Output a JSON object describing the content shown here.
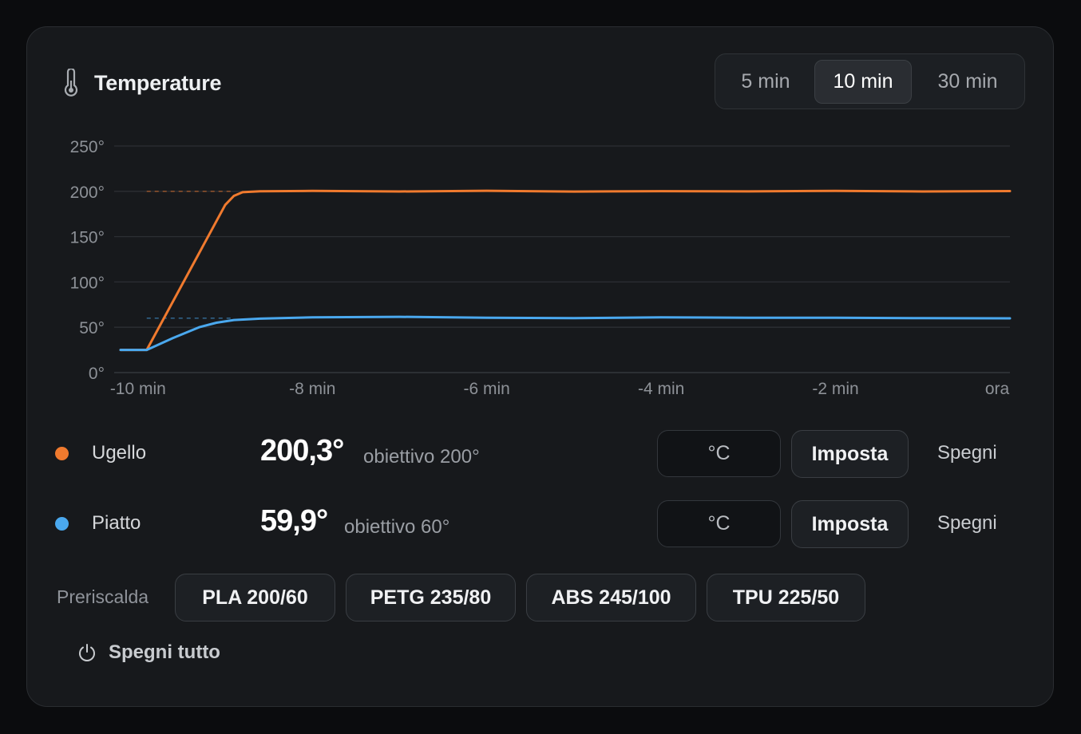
{
  "header": {
    "title": "Temperature",
    "icon": "thermometer-icon",
    "ranges": [
      "5 min",
      "10 min",
      "30 min"
    ],
    "active_range": "10 min"
  },
  "chart_data": {
    "type": "line",
    "x_ticks": [
      "-10 min",
      "-8 min",
      "-6 min",
      "-4 min",
      "-2 min",
      "ora"
    ],
    "y_ticks": [
      "250°",
      "200°",
      "150°",
      "100°",
      "50°",
      "0°"
    ],
    "xlim": [
      -10.2,
      0
    ],
    "ylim": [
      0,
      250
    ],
    "grid": true,
    "series": [
      {
        "name": "Ugello",
        "color": "#f07a2e",
        "target": 200,
        "x": [
          -10.2,
          -9.9,
          -9.0,
          -8.9,
          -8.8,
          -8.6,
          -8.0,
          -7.0,
          -6.0,
          -5.0,
          -4.0,
          -3.0,
          -2.0,
          -1.0,
          0
        ],
        "y": [
          25,
          25,
          185,
          195,
          199,
          200,
          200.4,
          199.8,
          200.6,
          199.7,
          200.2,
          199.9,
          200.5,
          199.8,
          200.3
        ]
      },
      {
        "name": "Piatto",
        "color": "#4aa8ee",
        "target": 60,
        "x": [
          -10.2,
          -9.9,
          -9.6,
          -9.3,
          -9.1,
          -8.9,
          -8.6,
          -8.0,
          -7.0,
          -6.0,
          -5.0,
          -4.0,
          -3.0,
          -2.0,
          -1.0,
          0
        ],
        "y": [
          25,
          25,
          38,
          50,
          55,
          58,
          59.5,
          61,
          61.5,
          60.5,
          60,
          61,
          60.5,
          60.5,
          60,
          59.9
        ]
      }
    ]
  },
  "heaters": [
    {
      "name": "Ugello",
      "value": "200,3°",
      "target": "obiettivo 200°",
      "unit": "°C",
      "set_label": "Imposta",
      "off_label": "Spegni",
      "color": "#f07a2e"
    },
    {
      "name": "Piatto",
      "value": "59,9°",
      "target": "obiettivo 60°",
      "unit": "°C",
      "set_label": "Imposta",
      "off_label": "Spegni",
      "color": "#4aa8ee"
    }
  ],
  "preheat": {
    "label": "Preriscalda",
    "presets": [
      "PLA 200/60",
      "PETG 235/80",
      "ABS 245/100",
      "TPU 225/50"
    ]
  },
  "power_off_all": {
    "label": "Spegni tutto",
    "icon": "power-icon"
  }
}
